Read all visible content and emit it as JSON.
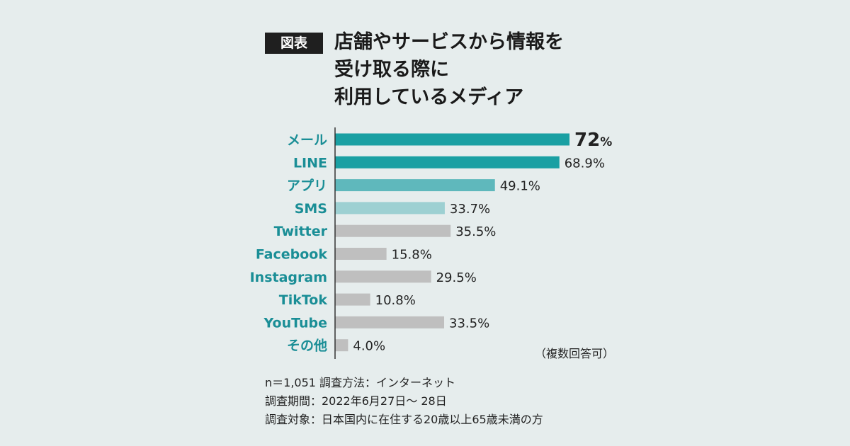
{
  "badge": "図表",
  "title_lines": [
    "店舗やサービスから情報を",
    "受け取る際に",
    "利用しているメディア"
  ],
  "note": "（複数回答可）",
  "footer": [
    "n＝1,051 調査方法：インターネット",
    "調査期間：2022年6月27日〜 28日",
    "調査対象：日本国内に在住する20歳以上65歳未満の方"
  ],
  "colors": {
    "label": "#1a8e96",
    "bar_dark": "#1aa0a3",
    "bar_mid": "#5fb8bc",
    "bar_light": "#9dd0d2",
    "bar_gray": "#bfbfbf",
    "axis": "#333333",
    "value": "#222222"
  },
  "chart_data": {
    "type": "bar",
    "orientation": "horizontal",
    "categories": [
      "メール",
      "LINE",
      "アプリ",
      "SMS",
      "Twitter",
      "Facebook",
      "Instagram",
      "TikTok",
      "YouTube",
      "その他"
    ],
    "values": [
      72,
      68.9,
      49.1,
      33.7,
      35.5,
      15.8,
      29.5,
      10.8,
      33.5,
      4.0
    ],
    "value_labels": [
      "72%",
      "68.9%",
      "49.1%",
      "33.7%",
      "35.5%",
      "15.8%",
      "29.5%",
      "10.8%",
      "33.5%",
      "4.0%"
    ],
    "bar_colors": [
      "bar_dark",
      "bar_dark",
      "bar_mid",
      "bar_light",
      "bar_gray",
      "bar_gray",
      "bar_gray",
      "bar_gray",
      "bar_gray",
      "bar_gray"
    ],
    "xlim": [
      0,
      72
    ]
  }
}
